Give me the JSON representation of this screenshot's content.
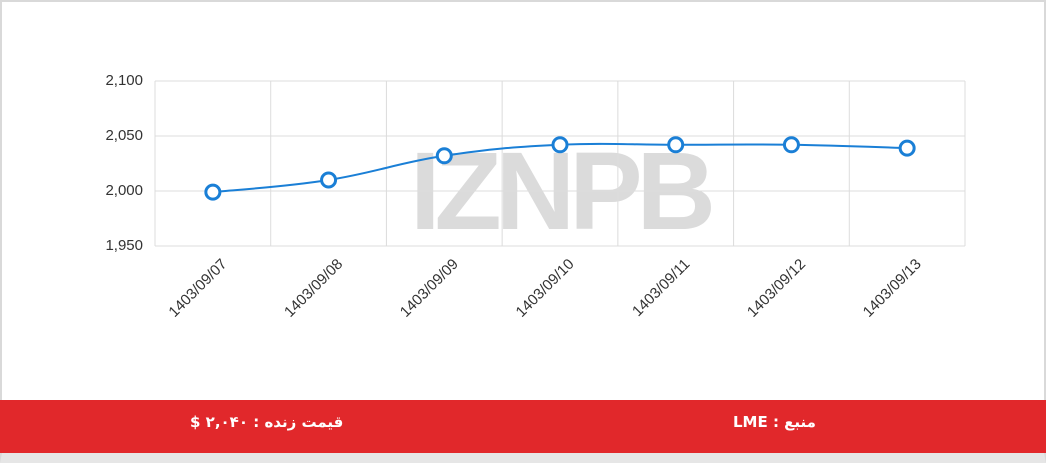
{
  "chart_data": {
    "type": "line",
    "watermark": "IZNPB",
    "categories": [
      "1403/09/07",
      "1403/09/08",
      "1403/09/09",
      "1403/09/10",
      "1403/09/11",
      "1403/09/12",
      "1403/09/13"
    ],
    "series": [
      {
        "color": "#1a7fd6",
        "values": [
          1999,
          2010,
          2032,
          2042,
          2042,
          2042,
          2039
        ]
      }
    ],
    "ylim": [
      1950,
      2100
    ],
    "yticks": [
      {
        "value": 1950,
        "label": "1,950"
      },
      {
        "value": 2000,
        "label": "2,000"
      },
      {
        "value": 2050,
        "label": "2,050"
      },
      {
        "value": 2100,
        "label": "2,100"
      }
    ],
    "grid": true
  },
  "footer": {
    "live_price": "قیمت زنده : ۲,۰۴۰ $",
    "source": "منبع : LME"
  }
}
